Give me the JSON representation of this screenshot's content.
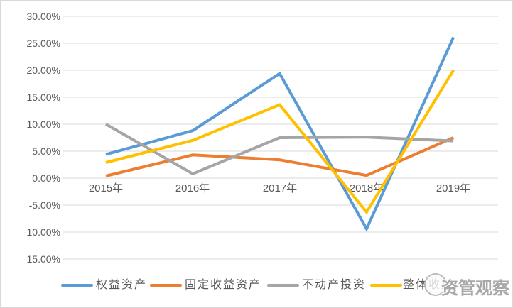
{
  "chart_data": {
    "type": "line",
    "title": "",
    "categories": [
      "2015年",
      "2016年",
      "2017年",
      "2018年",
      "2019年"
    ],
    "series": [
      {
        "name": "权益资产",
        "color": "#5B9BD5",
        "values": [
          4.4,
          8.8,
          19.4,
          -9.4,
          26.1
        ]
      },
      {
        "name": "固定收益资产",
        "color": "#ED7D31",
        "values": [
          0.4,
          4.3,
          3.4,
          0.5,
          7.5
        ]
      },
      {
        "name": "不动产投资",
        "color": "#A5A5A5",
        "values": [
          10.0,
          0.8,
          7.5,
          7.6,
          6.9
        ]
      },
      {
        "name": "整体收益",
        "color": "#FFC000",
        "values": [
          2.9,
          7.0,
          13.6,
          -6.3,
          20.0
        ]
      }
    ],
    "y_ticks": [
      "30.00%",
      "25.00%",
      "20.00%",
      "15.00%",
      "10.00%",
      "5.00%",
      "0.00%",
      "-5.00%",
      "-10.00%",
      "-15.00%"
    ],
    "y_tick_values": [
      30,
      25,
      20,
      15,
      10,
      5,
      0,
      -5,
      -10,
      -15
    ],
    "ylim": [
      -15,
      30
    ],
    "xlabel": "",
    "ylabel": "",
    "grid": true,
    "legend_position": "bottom",
    "values_unit": "percent"
  },
  "watermark": {
    "text": "资管观察"
  },
  "colors": {
    "gridline": "#D9D9D9",
    "axis_text": "#595959",
    "border": "#D9D9D9",
    "watermark_text": "#A8A8A8",
    "background": "#FFFFFF"
  }
}
